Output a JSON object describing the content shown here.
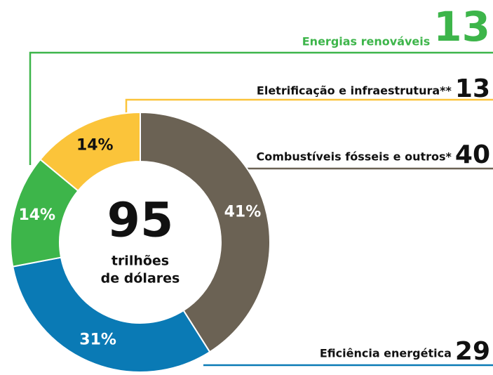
{
  "chart_data": {
    "type": "pie",
    "categories": [
      "Combustíveis fósseis e outros*",
      "Eficiência energética",
      "Energias renováveis",
      "Eletrificação e infraestrutura**"
    ],
    "values": [
      41,
      31,
      14,
      14
    ],
    "value_labels": [
      "41%",
      "31%",
      "14%",
      "14%"
    ],
    "amounts": [
      40,
      29,
      13,
      13
    ],
    "colors": [
      "#6b6254",
      "#0a7ab5",
      "#3db54a",
      "#fbc43a"
    ],
    "center": {
      "value": 95,
      "line1": "trilhões",
      "line2": "de dólares"
    }
  }
}
